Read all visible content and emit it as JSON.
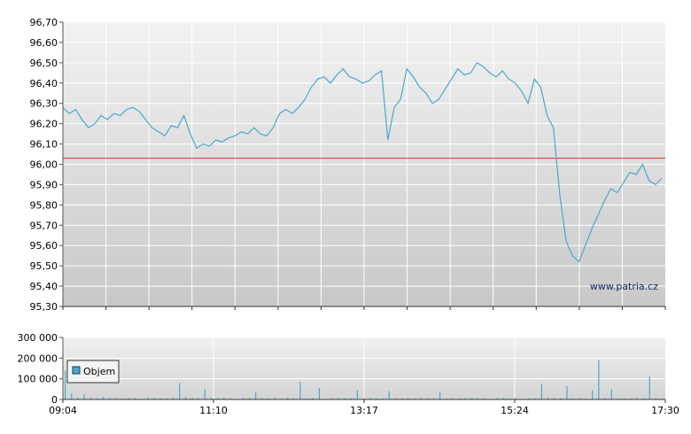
{
  "watermark": "www.patria.cz",
  "colors": {
    "price_line": "#4aa8cc",
    "reference_line": "#cc3333",
    "volume_bar": "#4aa8cc",
    "grid": "#ffffff",
    "axis": "#333333"
  },
  "chart_data": [
    {
      "type": "line",
      "title": "",
      "xlabel": "",
      "ylabel": "",
      "ylim": [
        95.3,
        96.7
      ],
      "x_ticks": [
        "09:04",
        "11:10",
        "13:17",
        "15:24",
        "17:30"
      ],
      "y_tick_labels": [
        "96,70",
        "96,60",
        "96,50",
        "96,40",
        "96,30",
        "96,20",
        "96,10",
        "96,00",
        "95,90",
        "95,80",
        "95,70",
        "95,60",
        "95,50",
        "95,40",
        "95,30"
      ],
      "reference_value": 96.03,
      "grid": true,
      "series": [
        {
          "values": [
            96.28,
            96.25,
            96.27,
            96.22,
            96.18,
            96.2,
            96.24,
            96.22,
            96.25,
            96.24,
            96.27,
            96.28,
            96.26,
            96.22,
            96.18,
            96.16,
            96.14,
            96.19,
            96.18,
            96.24,
            96.15,
            96.08,
            96.1,
            96.09,
            96.12,
            96.11,
            96.13,
            96.14,
            96.16,
            96.15,
            96.18,
            96.15,
            96.14,
            96.18,
            96.25,
            96.27,
            96.25,
            96.28,
            96.32,
            96.38,
            96.42,
            96.43,
            96.4,
            96.44,
            96.47,
            96.43,
            96.42,
            96.4,
            96.41,
            96.44,
            96.46,
            96.12,
            96.28,
            96.32,
            96.47,
            96.43,
            96.38,
            96.35,
            96.3,
            96.32,
            96.37,
            96.42,
            96.47,
            96.44,
            96.45,
            96.5,
            96.48,
            96.45,
            96.43,
            96.46,
            96.42,
            96.4,
            96.36,
            96.3,
            96.42,
            96.38,
            96.24,
            96.18,
            95.85,
            95.62,
            95.55,
            95.52,
            95.6,
            95.68,
            95.75,
            95.82,
            95.88,
            95.86,
            95.91,
            95.96,
            95.95,
            96.0,
            95.92,
            95.9,
            95.93
          ]
        }
      ]
    },
    {
      "type": "bar",
      "title": "",
      "ylim": [
        0,
        300000
      ],
      "y_tick_labels": [
        "300 000",
        "200 000",
        "100 000",
        "0"
      ],
      "x_ticks": [
        "09:04",
        "11:10",
        "13:17",
        "15:24",
        "17:30"
      ],
      "legend": {
        "label": "Objem",
        "placement": "left"
      },
      "series": [
        {
          "name": "Objem",
          "values": [
            140000,
            30000,
            10000,
            25000,
            8000,
            6000,
            12000,
            9000,
            7000,
            5000,
            8000,
            6000,
            4000,
            9000,
            7000,
            6000,
            5000,
            7000,
            80000,
            12000,
            8000,
            6000,
            50000,
            9000,
            7000,
            10000,
            5000,
            4000,
            6000,
            8000,
            35000,
            6000,
            5000,
            7000,
            4000,
            8000,
            6000,
            85000,
            5000,
            7000,
            55000,
            4000,
            6000,
            8000,
            5000,
            7000,
            45000,
            6000,
            9000,
            5000,
            4000,
            40000,
            6000,
            5000,
            7000,
            4000,
            8000,
            6000,
            5000,
            35000,
            4000,
            6000,
            5000,
            8000,
            7000,
            6000,
            5000,
            4000,
            6000,
            8000,
            5000,
            7000,
            4000,
            6000,
            5000,
            75000,
            8000,
            6000,
            7000,
            65000,
            5000,
            6000,
            4000,
            45000,
            190000,
            6000,
            50000,
            5000,
            6000,
            4000,
            7000,
            5000,
            110000,
            6000,
            4000
          ]
        }
      ]
    }
  ]
}
